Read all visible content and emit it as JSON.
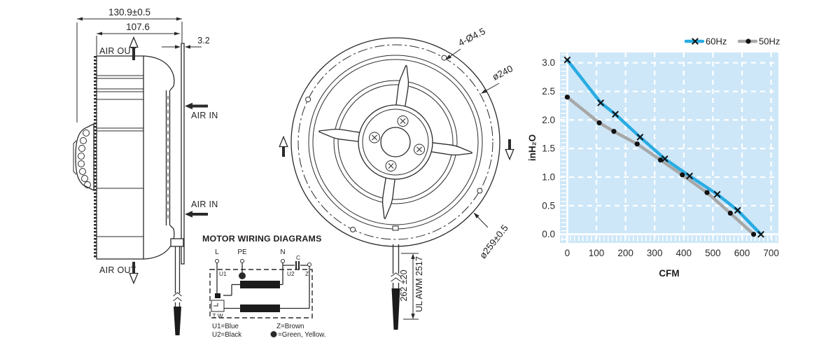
{
  "side_view": {
    "dim_overall": "130.9±0.5",
    "dim_body": "107.6",
    "dim_plate": "3.2",
    "air_out_top": "AIR OUT",
    "air_out_bottom": "AIR OUT",
    "air_in_top": "AIR IN",
    "air_in_bottom": "AIR IN"
  },
  "front_view": {
    "dim_holes": "4-Ø4.5",
    "dim_impeller": "ø240",
    "dim_outer": "ø259±0.5",
    "dim_cable_length": "262 ±20",
    "cable_spec": "UL AWM 2517"
  },
  "wiring_diagram": {
    "title": "MOTOR WIRING DIAGRAMS",
    "terminal_l": "L",
    "terminal_pe": "PE",
    "terminal_n": "N",
    "capacitor": "C",
    "label_u1": "U1",
    "label_u2": "U2",
    "label_z": "Z",
    "label_tw": "T W",
    "legend_u1": "U1=Blue",
    "legend_u2": "U2=Black",
    "legend_z": "Z=Brown",
    "legend_pe": "=Green, Yellow."
  },
  "chart_data": {
    "type": "line",
    "title": "",
    "xlabel": "CFM",
    "ylabel": "inH₂O",
    "xlim": [
      -25,
      725
    ],
    "ylim": [
      -0.15,
      3.18
    ],
    "grid": "dashed-white",
    "plot_bg": "#cde7f8",
    "marker_color": "#111111",
    "legend_position": "top-right",
    "xticks": [
      {
        "v": 0,
        "label": "0"
      },
      {
        "v": 100,
        "label": "100"
      },
      {
        "v": 200,
        "label": "200"
      },
      {
        "v": 300,
        "label": "300"
      },
      {
        "v": 400,
        "label": "400"
      },
      {
        "v": 500,
        "label": "500"
      },
      {
        "v": 600,
        "label": "600"
      },
      {
        "v": 700,
        "label": "700"
      }
    ],
    "yticks": [
      {
        "v": 0,
        "label": "0.0"
      },
      {
        "v": 0.5,
        "label": "0.5"
      },
      {
        "v": 1,
        "label": "1.0"
      },
      {
        "v": 1.5,
        "label": "1.5"
      },
      {
        "v": 2,
        "label": "2.0"
      },
      {
        "v": 2.5,
        "label": "2.5"
      },
      {
        "v": 3,
        "label": "3.0"
      }
    ],
    "series": [
      {
        "name": "60Hz",
        "color": "#29abe2",
        "marker": "x",
        "points": [
          [
            0,
            3.05
          ],
          [
            115,
            2.3
          ],
          [
            165,
            2.1
          ],
          [
            250,
            1.7
          ],
          [
            335,
            1.32
          ],
          [
            420,
            1.02
          ],
          [
            515,
            0.7
          ],
          [
            585,
            0.42
          ],
          [
            665,
            0.0
          ]
        ]
      },
      {
        "name": "50Hz",
        "color": "#a7a7a7",
        "marker": "dot",
        "points": [
          [
            0,
            2.4
          ],
          [
            110,
            1.95
          ],
          [
            160,
            1.8
          ],
          [
            240,
            1.58
          ],
          [
            320,
            1.3
          ],
          [
            395,
            1.04
          ],
          [
            480,
            0.73
          ],
          [
            560,
            0.37
          ],
          [
            640,
            0.0
          ]
        ]
      }
    ]
  }
}
